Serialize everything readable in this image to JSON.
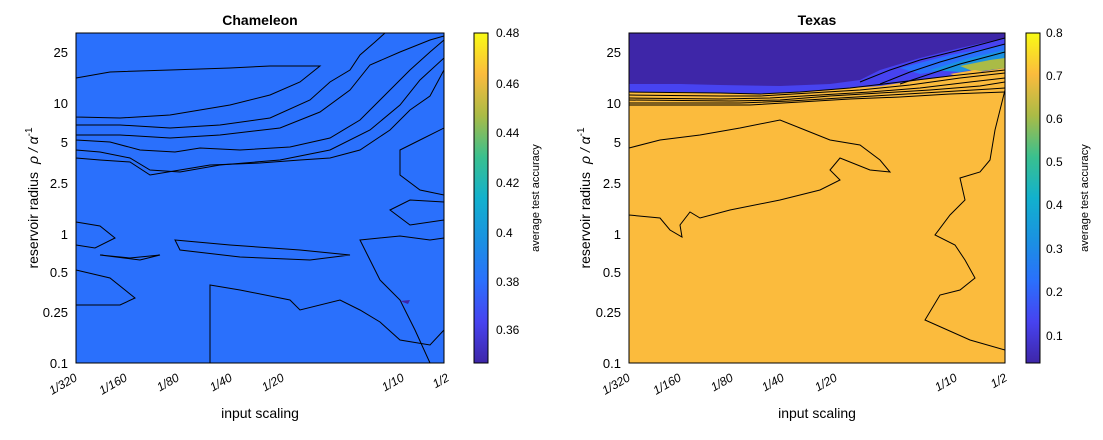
{
  "chart_data": [
    {
      "type": "contour",
      "title": "Chameleon",
      "xlabel": "input scaling",
      "ylabel_prefix": "reservoir radius",
      "ylabel_math": "ρ / α",
      "ylabel_sup": "-1",
      "colorbar_label": "average test accuracy",
      "x_ticks": [
        "1/320",
        "1/160",
        "1/80",
        "1/40",
        "1/20",
        "1/10",
        "1/2"
      ],
      "x_values": [
        0.003125,
        0.00625,
        0.0125,
        0.025,
        0.05,
        0.1,
        0.5
      ],
      "y_ticks": [
        "25",
        "10",
        "5",
        "2.5",
        "1",
        "0.5",
        "0.25",
        "0.1"
      ],
      "y_values": [
        25,
        10,
        5,
        2.5,
        1,
        0.5,
        0.25,
        0.1
      ],
      "cbar_ticks": [
        "0.48",
        "0.46",
        "0.44",
        "0.42",
        "0.4",
        "0.38",
        "0.36"
      ],
      "cbar_range": [
        0.345,
        0.48
      ],
      "grid": false
    },
    {
      "type": "contour",
      "title": "Texas",
      "xlabel": "input scaling",
      "ylabel_prefix": "reservoir radius",
      "ylabel_math": "ρ / α",
      "ylabel_sup": "-1",
      "colorbar_label": "average test accuracy",
      "x_ticks": [
        "1/320",
        "1/160",
        "1/80",
        "1/40",
        "1/20",
        "1/10",
        "1/2"
      ],
      "x_values": [
        0.003125,
        0.00625,
        0.0125,
        0.025,
        0.05,
        0.1,
        0.5
      ],
      "y_ticks": [
        "25",
        "10",
        "5",
        "2.5",
        "1",
        "0.5",
        "0.25",
        "0.1"
      ],
      "y_values": [
        25,
        10,
        5,
        2.5,
        1,
        0.5,
        0.25,
        0.1
      ],
      "cbar_ticks": [
        "0.8",
        "0.7",
        "0.6",
        "0.5",
        "0.4",
        "0.3",
        "0.2",
        "0.1"
      ],
      "cbar_range": [
        0.04,
        0.8
      ],
      "grid": false
    }
  ],
  "colormap": "parula"
}
